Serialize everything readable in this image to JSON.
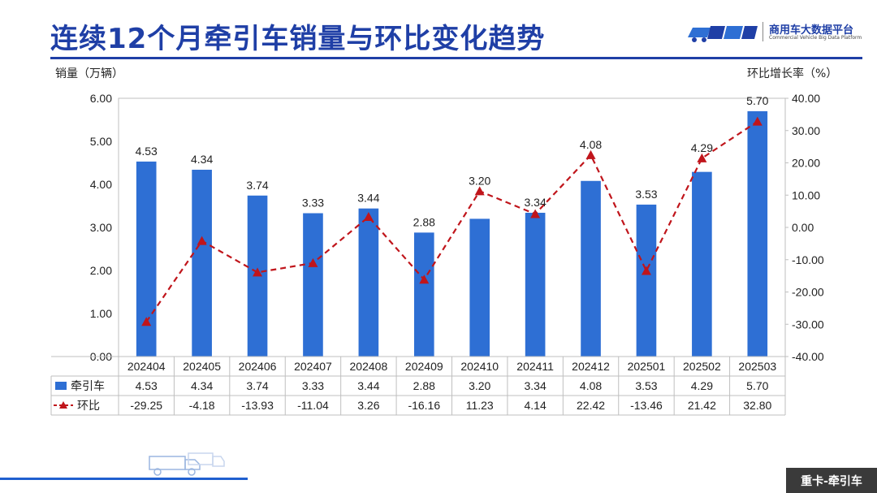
{
  "page": {
    "title": "连续12个月牵引车销量与环比变化趋势",
    "brand": {
      "name": "商用车大数据平台",
      "subtitle": "Commercial Vehicle Big Data Platform",
      "icon": "cvbd-logo-icon"
    },
    "footer_tag": "重卡-牵引车",
    "colors": {
      "bar": "#2e6fd4",
      "line": "#c0151b",
      "title": "#1f3fa6"
    }
  },
  "chart_data": {
    "type": "bar",
    "categories": [
      "202404",
      "202405",
      "202406",
      "202407",
      "202408",
      "202409",
      "202410",
      "202411",
      "202412",
      "202501",
      "202502",
      "202503"
    ],
    "series": [
      {
        "name": "牵引车",
        "type": "bar",
        "axis": "left",
        "values": [
          4.53,
          4.34,
          3.74,
          3.33,
          3.44,
          2.88,
          3.2,
          3.34,
          4.08,
          3.53,
          4.29,
          5.7
        ],
        "labels": [
          "4.53",
          "4.34",
          "3.74",
          "3.33",
          "3.44",
          "2.88",
          "3.20",
          "3.34",
          "4.08",
          "3.53",
          "4.29",
          "5.70"
        ]
      },
      {
        "name": "环比",
        "type": "line",
        "axis": "right",
        "values": [
          -29.25,
          -4.18,
          -13.93,
          -11.04,
          3.26,
          -16.16,
          11.23,
          4.14,
          22.42,
          -13.46,
          21.42,
          32.8
        ],
        "labels": [
          "-29.25",
          "-4.18",
          "-13.93",
          "-11.04",
          "3.26",
          "-16.16",
          "11.23",
          "4.14",
          "22.42",
          "-13.46",
          "21.42",
          "32.80"
        ]
      }
    ],
    "ylabel": "销量（万辆）",
    "y2label": "环比增长率（%）",
    "ylim": [
      0,
      6
    ],
    "y2lim": [
      -40,
      40
    ],
    "yticks": [
      "0.00",
      "1.00",
      "2.00",
      "3.00",
      "4.00",
      "5.00",
      "6.00"
    ],
    "y2ticks": [
      "-40.00",
      "-30.00",
      "-20.00",
      "-10.00",
      "0.00",
      "10.00",
      "20.00",
      "30.00",
      "40.00"
    ],
    "grid": false,
    "legend": "data-table-bottom"
  }
}
